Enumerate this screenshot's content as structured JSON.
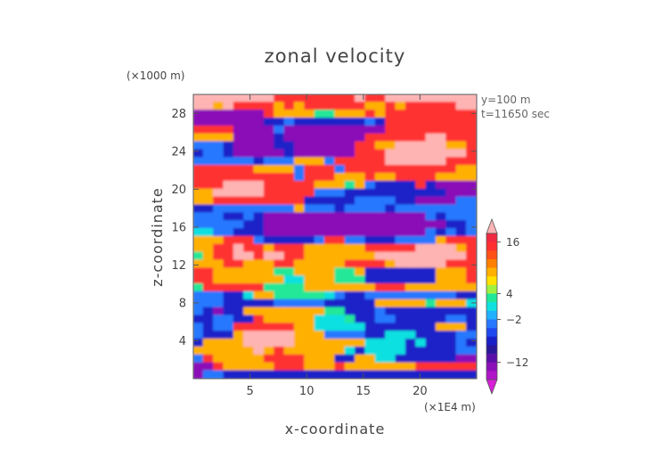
{
  "chart_data": {
    "type": "heatmap",
    "title": "zonal velocity",
    "xlabel": "x-coordinate",
    "ylabel": "z-coordinate",
    "x_unit": "(×1E4 m)",
    "y_unit": "(×1000 m)",
    "xlim": [
      0,
      25
    ],
    "ylim": [
      0,
      30
    ],
    "x_ticks": [
      5,
      10,
      15,
      20
    ],
    "y_ticks": [
      4,
      8,
      12,
      16,
      20,
      24,
      28
    ],
    "annotations": [
      "y=100 m",
      "t=11650 sec"
    ],
    "colorbar": {
      "levels": [
        -20,
        -16,
        -14,
        -12,
        -10,
        -8,
        -6,
        -4,
        -2,
        0,
        2,
        4,
        6,
        8,
        10,
        12,
        14,
        16,
        18,
        20
      ],
      "tick_labels": [
        "16",
        "4",
        "−2",
        "−12"
      ],
      "colors": [
        "#d81fd8",
        "#b015c8",
        "#8a10b8",
        "#5a10a8",
        "#2a189a",
        "#1a20c8",
        "#2048f0",
        "#2878ff",
        "#20b0ff",
        "#10e0e0",
        "#20e898",
        "#a0f040",
        "#ffe000",
        "#ffb000",
        "#ff8000",
        "#ff5018",
        "#ff3030",
        "#f02840",
        "#ffb4b4"
      ],
      "extend": "both"
    },
    "field_rows_top_to_bottom": [
      "pppppppprrrrrrrrprrppppppppp",
      "ppoprrrrororrrrrroororrrrrpp",
      "mmmmmmmroooollooororrrrrrrrr",
      "mmmmmmmbbnbbbbbbbnbrrrrrrrrr",
      "rrrrmmmmnmmmmmmmmmmrrrrrrrrr",
      "oooommmmbmmmmmmmmrrrrrrpprrr",
      "nnnbmmmmbbmmmmmmrroopppppoor",
      "bnnbmmmmmbmmmmmmrrrppppppppr",
      "nnnnnnbnnnooonrrrrrpppppprrr",
      "rrrrrroooonrrrnrrrrrrrrrrroo",
      "rrrrrrrrrrnrrroooroorrrroooo",
      "rrrpppprrrrrooolonbbbbrbmmmm",
      "ooppppprrrrrnnnbbbbbbbbbbmmm",
      "oorrrrrrrrrbbbbbnnnnbbmmmmnn",
      "bbnnnnnnnnonnnbnnnnbnnnnnnnn",
      "nnnbbnbmmmmmmmmmmmmmmmmnbnnn",
      "nnnnnbbmmmmmmmmmmmmmmmmmmbbn",
      "ggnnbbbmmmmmmmmmmmmmmmmnbnbn",
      "ooorrrnbbbbbnrrnnbbbnnnnorrr",
      "oorrprrorrroooooorrrrrppppor",
      "lorrpprpprrooooooopppppppppr",
      "ooorrooorrooooorrrroppppprrr",
      "rroooooolloooollobbbbbbbooor",
      "rroooooooggooolllbbbbbbbooor",
      "lrrrrrrllllooooooorrrooooooo",
      "nnnbbgoolllllgnbbnnnnnnnnnbb",
      "nnnbbbbbnnnnnbbbbbooooolooog",
      "nbmbboooooooollbbbnbbbbbbbbb",
      "bbnnbbroooooggglbbnnbbbbbnnb",
      "nbnnrrrrrroogggggbbbbbbbooob",
      "nbbbopppppooonnnnbbcccbbbbnn",
      "boooopppppoooooooccccbcbbbnb",
      "ooooooporoooooogbccccbbbbbnn",
      "nrooooorrrrooobbooccbbbbbbmm",
      "mmrooooorrrooorooooooorrrrrr",
      "mnnbbbbbbbbbbbbbbbbbbbbbbbbb"
    ],
    "field_legend": {
      "p": 18,
      "r": 14,
      "o": 8,
      "l": 3,
      "g": 1,
      "c": 0,
      "n": -3,
      "b": -8,
      "m": -13
    }
  }
}
